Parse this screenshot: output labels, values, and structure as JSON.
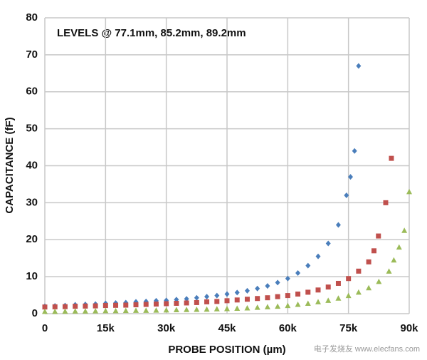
{
  "chart_data": {
    "type": "scatter",
    "annotation": "LEVELS @ 77.1mm, 85.2mm, 89.2mm",
    "x_label": "PROBE POSITION (µm)",
    "y_label": "CAPACITANCE (fF)",
    "watermark": "电子发烧友 www.elecfans.com",
    "xlim": [
      0,
      90000
    ],
    "xticks": [
      0,
      {
        "value": 15000,
        "label": "15k"
      },
      {
        "value": 30000,
        "label": "30k"
      },
      {
        "value": 45000,
        "label": "45k"
      },
      {
        "value": 60000,
        "label": "60k"
      },
      {
        "value": 75000,
        "label": "75k"
      },
      {
        "value": 90000,
        "label": "90k"
      }
    ],
    "ylim": [
      0,
      80
    ],
    "yticks": [
      0,
      10,
      20,
      30,
      40,
      50,
      60,
      70,
      80
    ],
    "grid": true,
    "series": [
      {
        "color": "#4a7ebb",
        "marker": "diamond",
        "x": [
          0,
          2500,
          5000,
          7500,
          10000,
          12500,
          15000,
          17500,
          20000,
          22500,
          25000,
          27500,
          30000,
          32500,
          35000,
          37500,
          40000,
          42500,
          45000,
          47500,
          50000,
          52500,
          55000,
          57500,
          60000,
          62500,
          65000,
          67500,
          70000,
          72500,
          74500,
          75500,
          76500,
          77500
        ],
        "values": [
          2.0,
          2.1,
          2.2,
          2.4,
          2.5,
          2.6,
          2.8,
          2.9,
          3.0,
          3.2,
          3.3,
          3.5,
          3.6,
          3.8,
          4.0,
          4.3,
          4.6,
          4.9,
          5.3,
          5.7,
          6.2,
          6.8,
          7.5,
          8.4,
          9.5,
          11,
          13,
          15.5,
          19,
          24,
          32,
          37,
          44,
          67
        ]
      },
      {
        "color": "#c0504d",
        "marker": "square",
        "x": [
          0,
          2500,
          5000,
          7500,
          10000,
          12500,
          15000,
          17500,
          20000,
          22500,
          25000,
          27500,
          30000,
          32500,
          35000,
          37500,
          40000,
          42500,
          45000,
          47500,
          50000,
          52500,
          55000,
          57500,
          60000,
          62500,
          65000,
          67500,
          70000,
          72500,
          75000,
          77500,
          80000,
          81300,
          82400,
          84200,
          85600
        ],
        "values": [
          1.8,
          1.85,
          1.9,
          2.0,
          2.05,
          2.1,
          2.2,
          2.25,
          2.3,
          2.4,
          2.5,
          2.6,
          2.7,
          2.8,
          2.9,
          3.0,
          3.2,
          3.3,
          3.5,
          3.7,
          3.9,
          4.1,
          4.3,
          4.6,
          4.9,
          5.3,
          5.8,
          6.4,
          7.2,
          8.2,
          9.5,
          11.5,
          14,
          17,
          21,
          30,
          42
        ]
      },
      {
        "color": "#9bbb59",
        "marker": "triangle",
        "x": [
          0,
          2500,
          5000,
          7500,
          10000,
          12500,
          15000,
          17500,
          20000,
          22500,
          25000,
          27500,
          30000,
          32500,
          35000,
          37500,
          40000,
          42500,
          45000,
          47500,
          50000,
          52500,
          55000,
          57500,
          60000,
          62500,
          65000,
          67500,
          70000,
          72500,
          75000,
          77500,
          80000,
          82500,
          85000,
          86200,
          87500,
          88800,
          90000
        ],
        "values": [
          0.6,
          0.6,
          0.65,
          0.7,
          0.7,
          0.75,
          0.8,
          0.8,
          0.85,
          0.9,
          0.9,
          0.95,
          1.0,
          1.05,
          1.1,
          1.15,
          1.2,
          1.3,
          1.35,
          1.45,
          1.55,
          1.7,
          1.85,
          2.0,
          2.2,
          2.5,
          2.8,
          3.2,
          3.6,
          4.2,
          4.9,
          5.8,
          7.0,
          8.7,
          11.5,
          14.5,
          18,
          22.5,
          33
        ]
      }
    ]
  }
}
